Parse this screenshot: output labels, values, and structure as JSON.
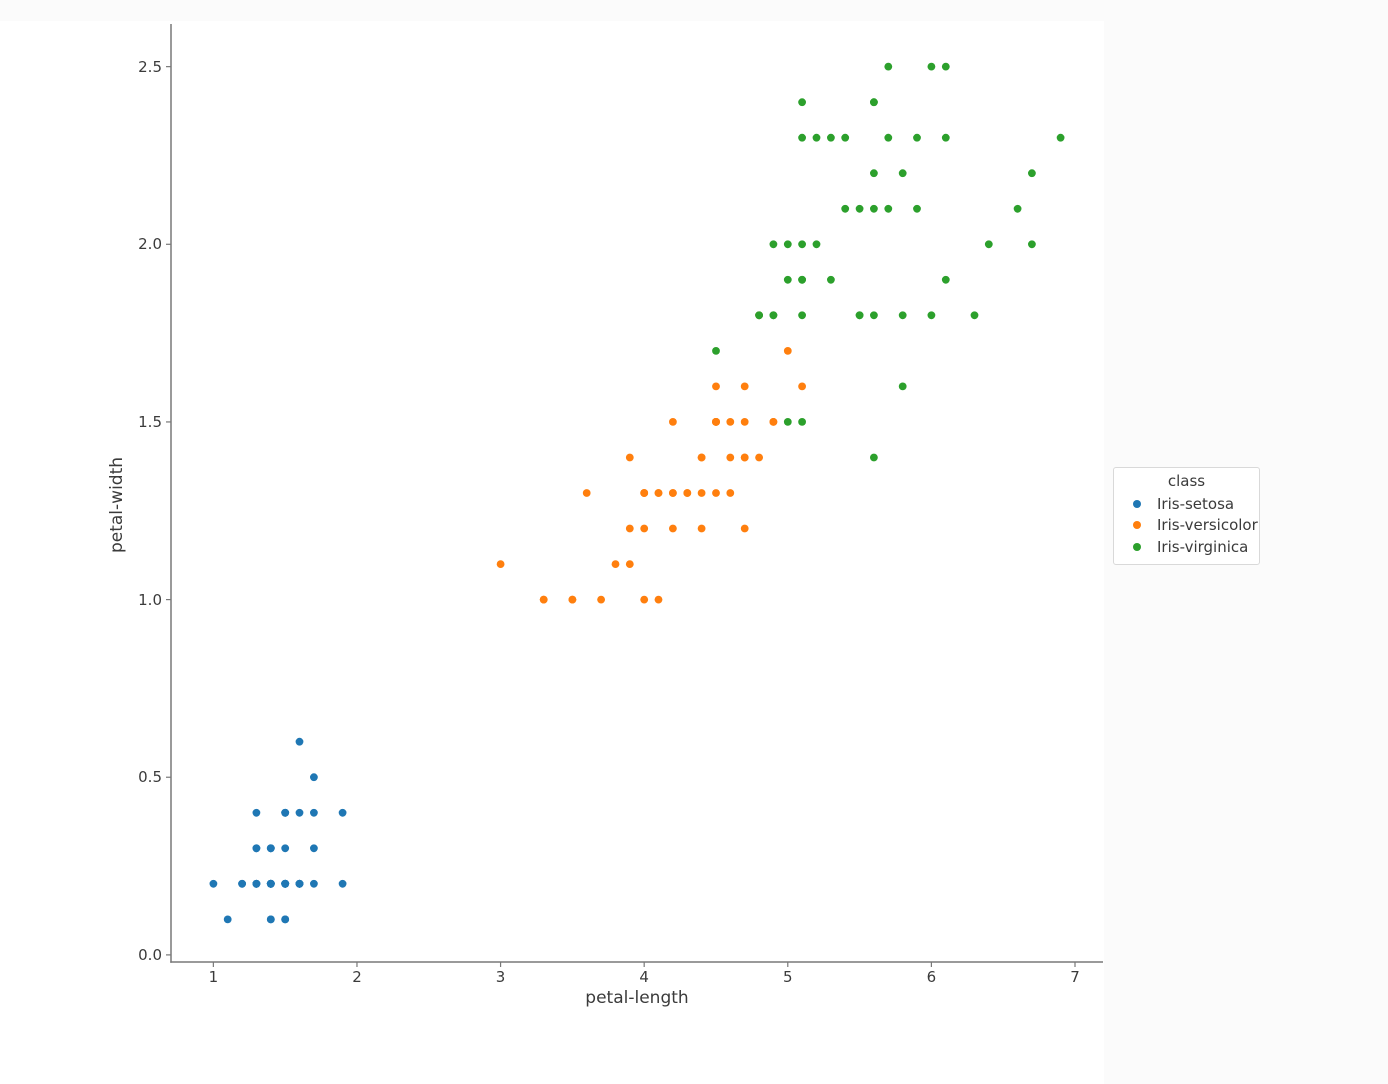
{
  "colors": {
    "page_background": "#fbfbfb",
    "figure_background": "#ffffff",
    "axis_line": "#787878",
    "text": "#3b3b3b",
    "legend_border": "#d9d9d9",
    "series_blue": "#1f77b4",
    "series_orange": "#ff7f0e",
    "series_green": "#2ca02c"
  },
  "chart_data": {
    "type": "scatter",
    "title": "",
    "xlabel": "petal-length",
    "ylabel": "petal-width",
    "xlim": [
      0.705,
      7.195
    ],
    "ylim": [
      -0.02,
      2.62
    ],
    "grid": false,
    "spines": [
      "left",
      "bottom"
    ],
    "xticks": {
      "values": [
        1,
        2,
        3,
        4,
        5,
        6,
        7
      ],
      "labels": [
        "1",
        "2",
        "3",
        "4",
        "5",
        "6",
        "7"
      ]
    },
    "yticks": {
      "values": [
        0.0,
        0.5,
        1.0,
        1.5,
        2.0,
        2.5
      ],
      "labels": [
        "0.0",
        "0.5",
        "1.0",
        "1.5",
        "2.0",
        "2.5"
      ]
    },
    "legend": {
      "title": "class",
      "position": "right-outside"
    },
    "series": [
      {
        "name": "Iris-setosa",
        "color": "#1f77b4",
        "points": [
          [
            1.4,
            0.2
          ],
          [
            1.4,
            0.2
          ],
          [
            1.3,
            0.2
          ],
          [
            1.5,
            0.2
          ],
          [
            1.4,
            0.2
          ],
          [
            1.7,
            0.4
          ],
          [
            1.4,
            0.3
          ],
          [
            1.5,
            0.2
          ],
          [
            1.4,
            0.2
          ],
          [
            1.5,
            0.1
          ],
          [
            1.5,
            0.2
          ],
          [
            1.6,
            0.2
          ],
          [
            1.4,
            0.1
          ],
          [
            1.1,
            0.1
          ],
          [
            1.2,
            0.2
          ],
          [
            1.5,
            0.4
          ],
          [
            1.3,
            0.4
          ],
          [
            1.4,
            0.3
          ],
          [
            1.7,
            0.3
          ],
          [
            1.5,
            0.3
          ],
          [
            1.7,
            0.2
          ],
          [
            1.5,
            0.4
          ],
          [
            1.0,
            0.2
          ],
          [
            1.7,
            0.5
          ],
          [
            1.9,
            0.2
          ],
          [
            1.6,
            0.2
          ],
          [
            1.6,
            0.4
          ],
          [
            1.5,
            0.2
          ],
          [
            1.4,
            0.2
          ],
          [
            1.6,
            0.2
          ],
          [
            1.6,
            0.2
          ],
          [
            1.5,
            0.4
          ],
          [
            1.5,
            0.1
          ],
          [
            1.4,
            0.2
          ],
          [
            1.5,
            0.2
          ],
          [
            1.2,
            0.2
          ],
          [
            1.3,
            0.2
          ],
          [
            1.4,
            0.1
          ],
          [
            1.3,
            0.2
          ],
          [
            1.5,
            0.2
          ],
          [
            1.3,
            0.3
          ],
          [
            1.3,
            0.3
          ],
          [
            1.3,
            0.2
          ],
          [
            1.6,
            0.6
          ],
          [
            1.9,
            0.4
          ],
          [
            1.4,
            0.3
          ],
          [
            1.6,
            0.2
          ],
          [
            1.4,
            0.2
          ],
          [
            1.5,
            0.2
          ],
          [
            1.4,
            0.2
          ]
        ]
      },
      {
        "name": "Iris-versicolor",
        "color": "#ff7f0e",
        "points": [
          [
            4.7,
            1.4
          ],
          [
            4.5,
            1.5
          ],
          [
            4.9,
            1.5
          ],
          [
            4.0,
            1.3
          ],
          [
            4.6,
            1.5
          ],
          [
            4.5,
            1.3
          ],
          [
            4.7,
            1.6
          ],
          [
            3.3,
            1.0
          ],
          [
            4.6,
            1.3
          ],
          [
            3.9,
            1.4
          ],
          [
            3.5,
            1.0
          ],
          [
            4.2,
            1.5
          ],
          [
            4.0,
            1.0
          ],
          [
            4.7,
            1.4
          ],
          [
            3.6,
            1.3
          ],
          [
            4.4,
            1.4
          ],
          [
            4.5,
            1.5
          ],
          [
            4.1,
            1.0
          ],
          [
            4.5,
            1.5
          ],
          [
            3.9,
            1.1
          ],
          [
            4.8,
            1.8
          ],
          [
            4.0,
            1.3
          ],
          [
            4.9,
            1.5
          ],
          [
            4.7,
            1.2
          ],
          [
            4.3,
            1.3
          ],
          [
            4.4,
            1.4
          ],
          [
            4.8,
            1.4
          ],
          [
            5.0,
            1.7
          ],
          [
            4.5,
            1.5
          ],
          [
            3.5,
            1.0
          ],
          [
            3.8,
            1.1
          ],
          [
            3.7,
            1.0
          ],
          [
            3.9,
            1.2
          ],
          [
            5.1,
            1.6
          ],
          [
            4.5,
            1.5
          ],
          [
            4.5,
            1.6
          ],
          [
            4.7,
            1.5
          ],
          [
            4.4,
            1.3
          ],
          [
            4.1,
            1.3
          ],
          [
            4.0,
            1.3
          ],
          [
            4.4,
            1.2
          ],
          [
            4.6,
            1.4
          ],
          [
            4.0,
            1.2
          ],
          [
            3.3,
            1.0
          ],
          [
            4.2,
            1.3
          ],
          [
            4.2,
            1.2
          ],
          [
            4.2,
            1.3
          ],
          [
            4.3,
            1.3
          ],
          [
            3.0,
            1.1
          ],
          [
            4.1,
            1.3
          ]
        ]
      },
      {
        "name": "Iris-virginica",
        "color": "#2ca02c",
        "points": [
          [
            6.0,
            2.5
          ],
          [
            5.1,
            1.9
          ],
          [
            5.9,
            2.1
          ],
          [
            5.6,
            1.8
          ],
          [
            5.8,
            2.2
          ],
          [
            6.6,
            2.1
          ],
          [
            4.5,
            1.7
          ],
          [
            6.3,
            1.8
          ],
          [
            5.8,
            1.8
          ],
          [
            6.1,
            2.5
          ],
          [
            5.1,
            2.0
          ],
          [
            5.3,
            1.9
          ],
          [
            5.5,
            2.1
          ],
          [
            5.0,
            2.0
          ],
          [
            5.1,
            2.4
          ],
          [
            5.3,
            2.3
          ],
          [
            5.5,
            1.8
          ],
          [
            6.7,
            2.2
          ],
          [
            6.9,
            2.3
          ],
          [
            5.0,
            1.5
          ],
          [
            5.7,
            2.3
          ],
          [
            4.9,
            2.0
          ],
          [
            6.7,
            2.0
          ],
          [
            4.9,
            1.8
          ],
          [
            5.7,
            2.1
          ],
          [
            6.0,
            1.8
          ],
          [
            4.8,
            1.8
          ],
          [
            4.9,
            1.8
          ],
          [
            5.6,
            2.1
          ],
          [
            5.8,
            1.6
          ],
          [
            6.1,
            1.9
          ],
          [
            6.4,
            2.0
          ],
          [
            5.6,
            2.2
          ],
          [
            5.1,
            1.5
          ],
          [
            5.6,
            1.4
          ],
          [
            6.1,
            2.3
          ],
          [
            5.6,
            2.4
          ],
          [
            5.5,
            1.8
          ],
          [
            4.8,
            1.8
          ],
          [
            5.4,
            2.1
          ],
          [
            5.6,
            2.4
          ],
          [
            5.1,
            2.3
          ],
          [
            5.1,
            1.9
          ],
          [
            5.9,
            2.3
          ],
          [
            5.7,
            2.5
          ],
          [
            5.2,
            2.3
          ],
          [
            5.0,
            1.9
          ],
          [
            5.2,
            2.0
          ],
          [
            5.4,
            2.3
          ],
          [
            5.1,
            1.8
          ]
        ]
      }
    ]
  }
}
